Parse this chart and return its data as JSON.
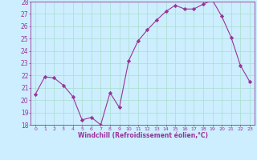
{
  "x": [
    0,
    1,
    2,
    3,
    4,
    5,
    6,
    7,
    8,
    9,
    10,
    11,
    12,
    13,
    14,
    15,
    16,
    17,
    18,
    19,
    20,
    21,
    22,
    23
  ],
  "y": [
    20.5,
    21.9,
    21.8,
    21.2,
    20.3,
    18.4,
    18.6,
    18.0,
    20.6,
    19.4,
    23.2,
    24.8,
    25.7,
    26.5,
    27.2,
    27.7,
    27.4,
    27.4,
    27.8,
    28.1,
    26.8,
    25.1,
    22.8,
    21.5
  ],
  "line_color": "#993399",
  "marker": "D",
  "marker_size": 2.2,
  "bg_color": "#cceeff",
  "grid_color": "#aaddcc",
  "xlabel": "Windchill (Refroidissement éolien,°C)",
  "xlabel_color": "#993399",
  "tick_color": "#993399",
  "ylim": [
    18,
    28
  ],
  "xlim": [
    -0.5,
    23.5
  ],
  "yticks": [
    18,
    19,
    20,
    21,
    22,
    23,
    24,
    25,
    26,
    27,
    28
  ],
  "xticks": [
    0,
    1,
    2,
    3,
    4,
    5,
    6,
    7,
    8,
    9,
    10,
    11,
    12,
    13,
    14,
    15,
    16,
    17,
    18,
    19,
    20,
    21,
    22,
    23
  ]
}
